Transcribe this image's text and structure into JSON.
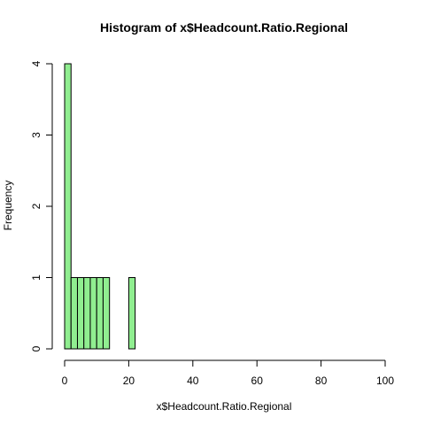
{
  "chart_data": {
    "type": "bar",
    "title": "Histogram of x$Headcount.Ratio.Regional",
    "xlabel": "x$Headcount.Ratio.Regional",
    "ylabel": "Frequency",
    "bin_width": 2,
    "bins": [
      {
        "start": 0,
        "end": 2,
        "count": 4
      },
      {
        "start": 2,
        "end": 4,
        "count": 1
      },
      {
        "start": 4,
        "end": 6,
        "count": 1
      },
      {
        "start": 6,
        "end": 8,
        "count": 1
      },
      {
        "start": 8,
        "end": 10,
        "count": 1
      },
      {
        "start": 10,
        "end": 12,
        "count": 1
      },
      {
        "start": 12,
        "end": 14,
        "count": 1
      },
      {
        "start": 20,
        "end": 22,
        "count": 1
      }
    ],
    "xlim": [
      0,
      100
    ],
    "ylim": [
      0,
      4
    ],
    "xticks": [
      "0",
      "20",
      "40",
      "60",
      "80",
      "100"
    ],
    "yticks": [
      "0",
      "1",
      "2",
      "3",
      "4"
    ],
    "bar_color": "#90ee90",
    "grid": false,
    "legend": "none"
  }
}
